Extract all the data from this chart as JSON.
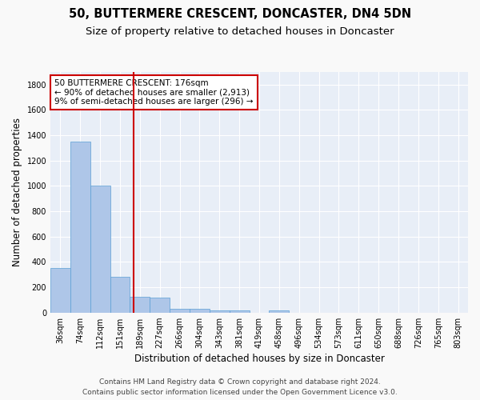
{
  "title": "50, BUTTERMERE CRESCENT, DONCASTER, DN4 5DN",
  "subtitle": "Size of property relative to detached houses in Doncaster",
  "xlabel": "Distribution of detached houses by size in Doncaster",
  "ylabel": "Number of detached properties",
  "categories": [
    "36sqm",
    "74sqm",
    "112sqm",
    "151sqm",
    "189sqm",
    "227sqm",
    "266sqm",
    "304sqm",
    "343sqm",
    "381sqm",
    "419sqm",
    "458sqm",
    "496sqm",
    "534sqm",
    "573sqm",
    "611sqm",
    "650sqm",
    "688sqm",
    "726sqm",
    "765sqm",
    "803sqm"
  ],
  "values": [
    350,
    1350,
    1005,
    280,
    123,
    120,
    32,
    32,
    20,
    15,
    0,
    15,
    0,
    0,
    0,
    0,
    0,
    0,
    0,
    0,
    0
  ],
  "bar_color": "#aec6e8",
  "bar_edge_color": "#5a9fd4",
  "bar_width": 1.0,
  "ylim": [
    0,
    1900
  ],
  "yticks": [
    0,
    200,
    400,
    600,
    800,
    1000,
    1200,
    1400,
    1600,
    1800
  ],
  "annotation_text": "50 BUTTERMERE CRESCENT: 176sqm\n← 90% of detached houses are smaller (2,913)\n9% of semi-detached houses are larger (296) →",
  "annotation_box_color": "#ffffff",
  "annotation_box_edge_color": "#cc0000",
  "footer_line1": "Contains HM Land Registry data © Crown copyright and database right 2024.",
  "footer_line2": "Contains public sector information licensed under the Open Government Licence v3.0.",
  "background_color": "#e8eef7",
  "grid_color": "#ffffff",
  "title_fontsize": 10.5,
  "subtitle_fontsize": 9.5,
  "tick_fontsize": 7,
  "ylabel_fontsize": 8.5,
  "xlabel_fontsize": 8.5,
  "annotation_fontsize": 7.5,
  "footer_fontsize": 6.5
}
